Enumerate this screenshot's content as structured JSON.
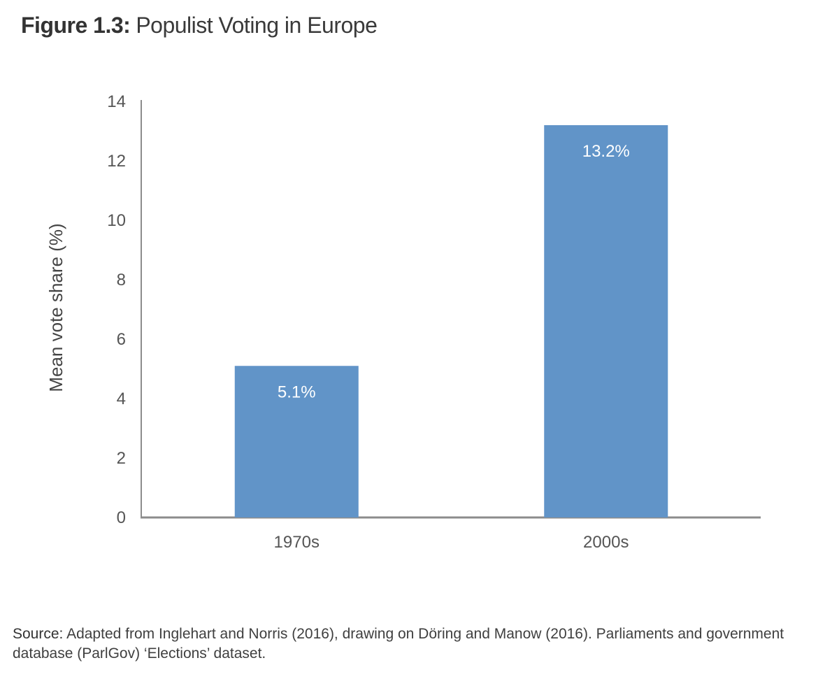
{
  "figure": {
    "number": "Figure 1.3:",
    "title": "Populist Voting in Europe"
  },
  "source": {
    "label": "Source:",
    "text": "Adapted from Inglehart and Norris (2016), drawing on Döring and Manow (2016). Parliaments and government database (ParlGov) ‘Elections’ dataset."
  },
  "colors": {
    "bar": "#6194c8",
    "axis": "#8c8c8c",
    "tick_text": "#555555",
    "bar_label": "#ffffff"
  },
  "chart_data": {
    "type": "bar",
    "title": "Populist Voting in Europe",
    "xlabel": "",
    "ylabel": "Mean vote share (%)",
    "categories": [
      "1970s",
      "2000s"
    ],
    "values": [
      5.1,
      13.2
    ],
    "data_labels": [
      "5.1%",
      "13.2%"
    ],
    "ylim": [
      0,
      14
    ],
    "yticks": [
      0,
      2,
      4,
      6,
      8,
      10,
      12,
      14
    ],
    "grid": false,
    "legend": "none"
  }
}
